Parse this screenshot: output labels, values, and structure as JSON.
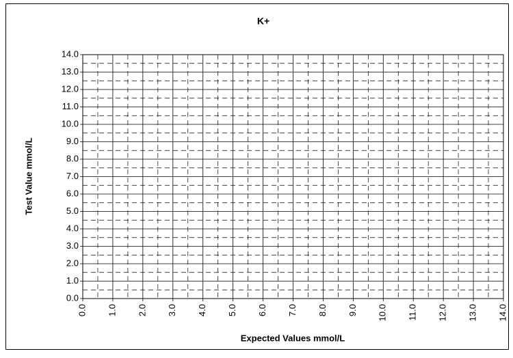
{
  "chart_data": {
    "type": "scatter",
    "title": "K+",
    "xlabel": "Expected Values mmol/L",
    "ylabel": "Test Value mmol/L",
    "xlim": [
      0,
      14
    ],
    "ylim": [
      0,
      14
    ],
    "xticks": [
      {
        "value": 0,
        "label": "0.0"
      },
      {
        "value": 1,
        "label": "1.0"
      },
      {
        "value": 2,
        "label": "2.0"
      },
      {
        "value": 3,
        "label": "3.0"
      },
      {
        "value": 4,
        "label": "4.0"
      },
      {
        "value": 5,
        "label": "5.0"
      },
      {
        "value": 6,
        "label": "6.0"
      },
      {
        "value": 7,
        "label": "7.0"
      },
      {
        "value": 8,
        "label": "8.0"
      },
      {
        "value": 9,
        "label": "9.0"
      },
      {
        "value": 10,
        "label": "10.0"
      },
      {
        "value": 11,
        "label": "11.0"
      },
      {
        "value": 12,
        "label": "12.0"
      },
      {
        "value": 13,
        "label": "13.0"
      },
      {
        "value": 14,
        "label": "14.0"
      }
    ],
    "yticks": [
      {
        "value": 0,
        "label": "0.0"
      },
      {
        "value": 1,
        "label": "1.0"
      },
      {
        "value": 2,
        "label": "2.0"
      },
      {
        "value": 3,
        "label": "3.0"
      },
      {
        "value": 4,
        "label": "4.0"
      },
      {
        "value": 5,
        "label": "5.0"
      },
      {
        "value": 6,
        "label": "6.0"
      },
      {
        "value": 7,
        "label": "7.0"
      },
      {
        "value": 8,
        "label": "8.0"
      },
      {
        "value": 9,
        "label": "9.0"
      },
      {
        "value": 10,
        "label": "10.0"
      },
      {
        "value": 11,
        "label": "11.0"
      },
      {
        "value": 12,
        "label": "12.0"
      },
      {
        "value": 13,
        "label": "13.0"
      },
      {
        "value": 14,
        "label": "14.0"
      }
    ],
    "grid": true,
    "minor_grid": true
  }
}
